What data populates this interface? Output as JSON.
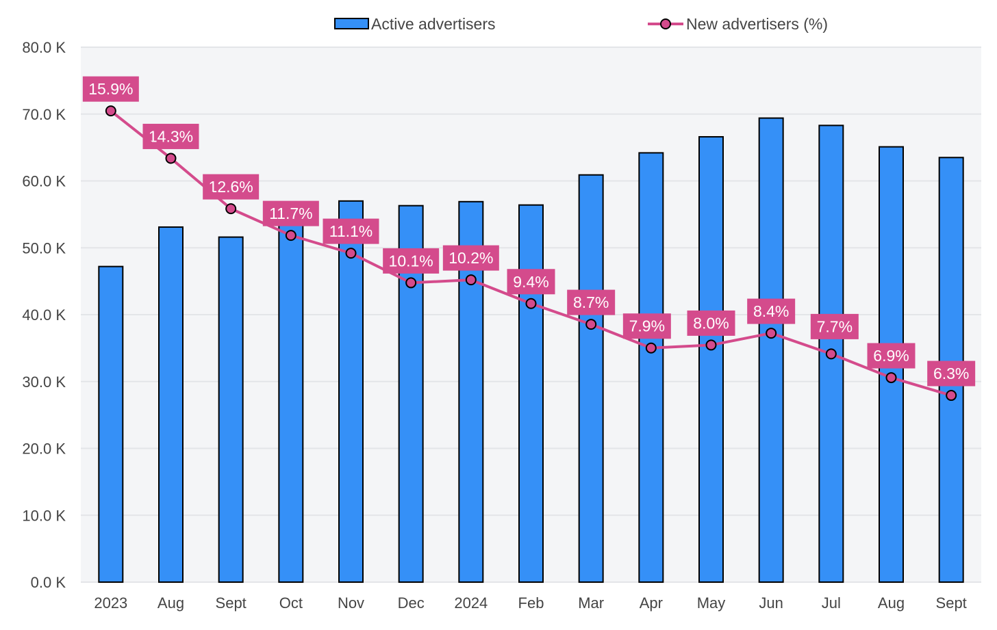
{
  "chart_data": {
    "type": "bar",
    "title": "",
    "xlabel": "",
    "ylabel": "",
    "categories": [
      "2023",
      "Aug",
      "Sept",
      "Oct",
      "Nov",
      "Dec",
      "2024",
      "Feb",
      "Mar",
      "Apr",
      "May",
      "Jun",
      "Jul",
      "Aug",
      "Sept"
    ],
    "ylim": [
      0,
      80
    ],
    "yticks": [
      "0.0 K",
      "10.0 K",
      "20.0 K",
      "30.0 K",
      "40.0 K",
      "50.0 K",
      "60.0 K",
      "70.0 K",
      "80.0 K"
    ],
    "ytick_values": [
      0,
      10,
      20,
      30,
      40,
      50,
      60,
      70,
      80
    ],
    "grid": true,
    "legend_position": "top",
    "series": [
      {
        "name": "Active advertisers",
        "type": "bar",
        "unit": "K",
        "color": "#3590f7",
        "values": [
          47.2,
          53.1,
          51.6,
          54.0,
          57.0,
          56.3,
          56.9,
          56.4,
          60.9,
          64.2,
          66.6,
          69.4,
          68.3,
          65.1,
          63.5
        ]
      },
      {
        "name": "New advertisers (%)",
        "type": "line",
        "unit": "%",
        "color": "#d44b8c",
        "secondary_axis_max": 18.05,
        "values": [
          15.9,
          14.3,
          12.6,
          11.7,
          11.1,
          10.1,
          10.2,
          9.4,
          8.7,
          7.9,
          8.0,
          8.4,
          7.7,
          6.9,
          6.3
        ],
        "labels": [
          "15.9%",
          "14.3%",
          "12.6%",
          "11.7%",
          "11.1%",
          "10.1%",
          "10.2%",
          "9.4%",
          "8.7%",
          "7.9%",
          "8.0%",
          "8.4%",
          "7.7%",
          "6.9%",
          "6.3%"
        ]
      }
    ]
  },
  "colors": {
    "plot_background": "#f4f5f7",
    "gridline": "#e3e5e8",
    "bar_fill": "#3590f7",
    "line_color": "#d44b8c",
    "text": "#444444"
  }
}
